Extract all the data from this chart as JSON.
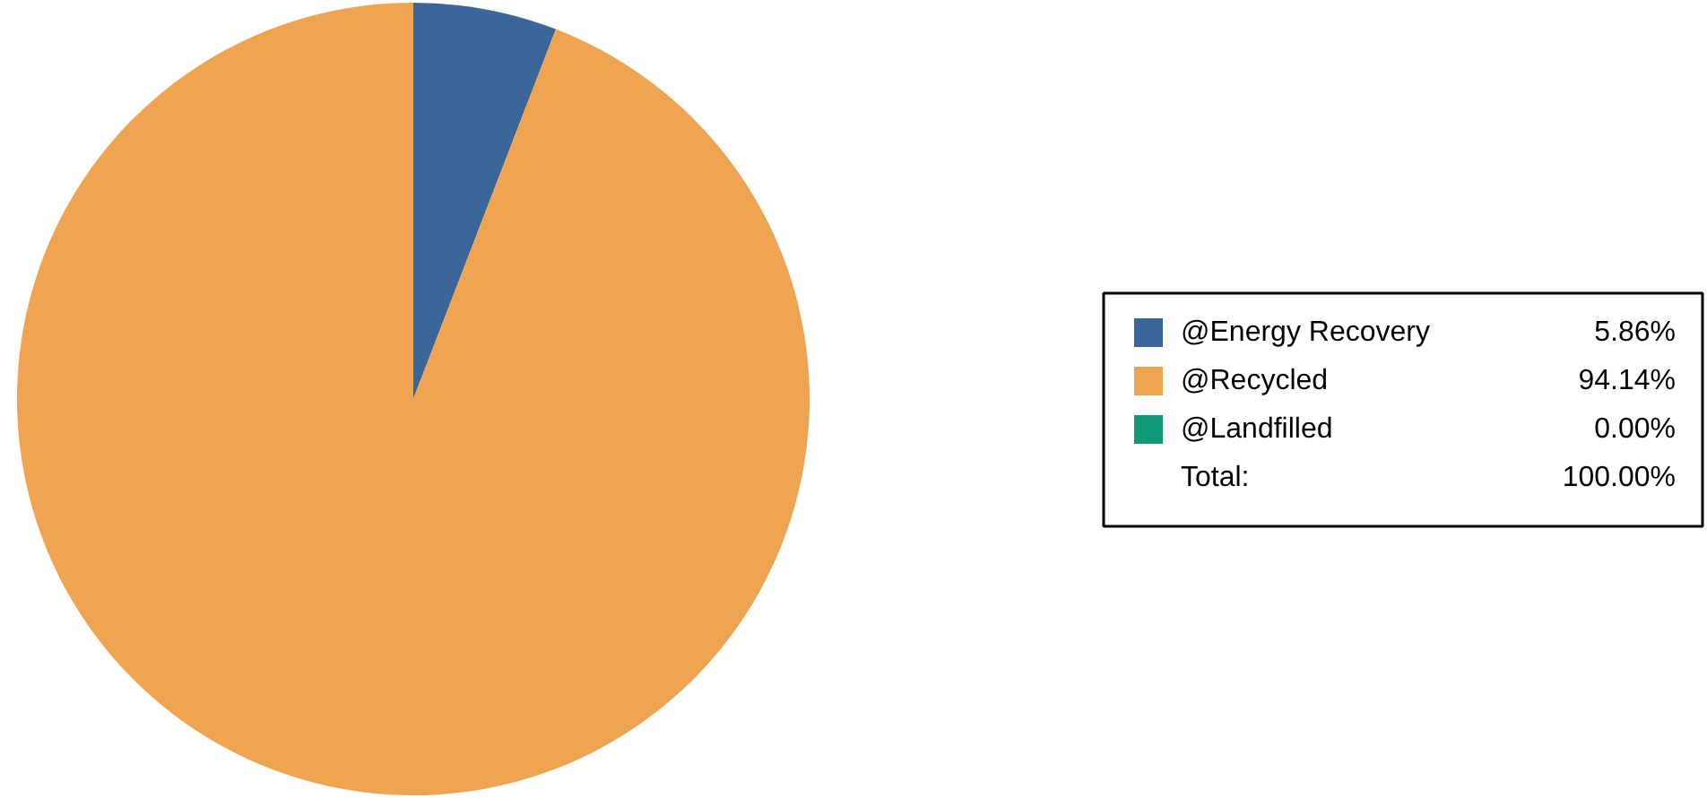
{
  "chart_data": {
    "type": "pie",
    "categories": [
      "@Energy Recovery",
      "@Recycled",
      "@Landfilled"
    ],
    "values": [
      5.86,
      94.14,
      0.0
    ],
    "colors": [
      "#3b6699",
      "#efa452",
      "#0e9a78"
    ],
    "value_labels": [
      "5.86%",
      "94.14%",
      "0.00%"
    ],
    "annotations": [
      "Total:",
      "100.00%"
    ],
    "legend": "right"
  }
}
